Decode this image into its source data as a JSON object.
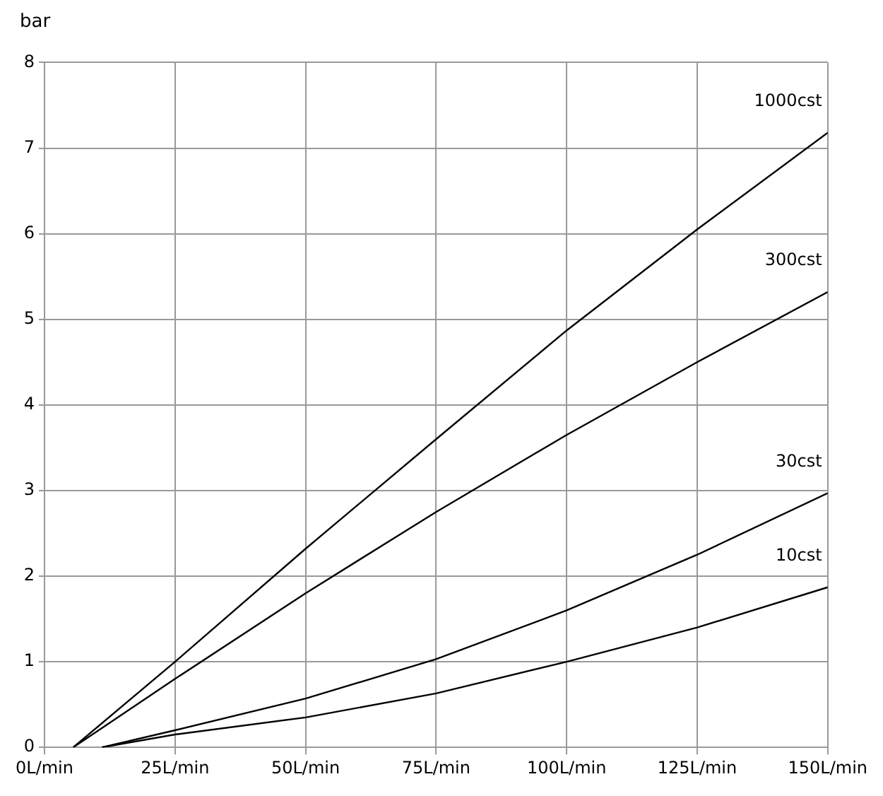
{
  "chart_data": {
    "type": "line",
    "ylabel": "bar",
    "series": [
      {
        "name": "1000cst",
        "color": "#000000",
        "x": [
          5.5,
          25,
          50,
          75,
          100,
          125,
          150
        ],
        "values": [
          0,
          1.0,
          2.32,
          3.6,
          4.87,
          6.05,
          7.18
        ]
      },
      {
        "name": "300cst",
        "color": "#000000",
        "x": [
          5.5,
          25,
          50,
          75,
          100,
          125,
          150
        ],
        "values": [
          0,
          0.8,
          1.8,
          2.75,
          3.65,
          4.5,
          5.32
        ]
      },
      {
        "name": "30cst",
        "color": "#000000",
        "x": [
          11,
          25,
          50,
          75,
          100,
          125,
          150
        ],
        "values": [
          0,
          0.2,
          0.57,
          1.03,
          1.6,
          2.25,
          2.97
        ]
      },
      {
        "name": "10cst",
        "color": "#000000",
        "x": [
          11,
          25,
          50,
          75,
          100,
          125,
          150
        ],
        "values": [
          0,
          0.15,
          0.35,
          0.63,
          1.0,
          1.4,
          1.87
        ]
      }
    ],
    "xlim": [
      0,
      150
    ],
    "xticks": [
      {
        "value": 0,
        "label": "0L/min"
      },
      {
        "value": 25,
        "label": "25L/min"
      },
      {
        "value": 50,
        "label": "50L/min"
      },
      {
        "value": 75,
        "label": "75L/min"
      },
      {
        "value": 100,
        "label": "100L/min"
      },
      {
        "value": 125,
        "label": "125L/min"
      },
      {
        "value": 150,
        "label": "150L/min"
      }
    ],
    "ylim": [
      0,
      8
    ],
    "yticks": [
      0,
      1,
      2,
      3,
      4,
      5,
      6,
      7,
      8
    ],
    "grid": true,
    "legend": false,
    "marker": "none",
    "line_style": "solid"
  }
}
